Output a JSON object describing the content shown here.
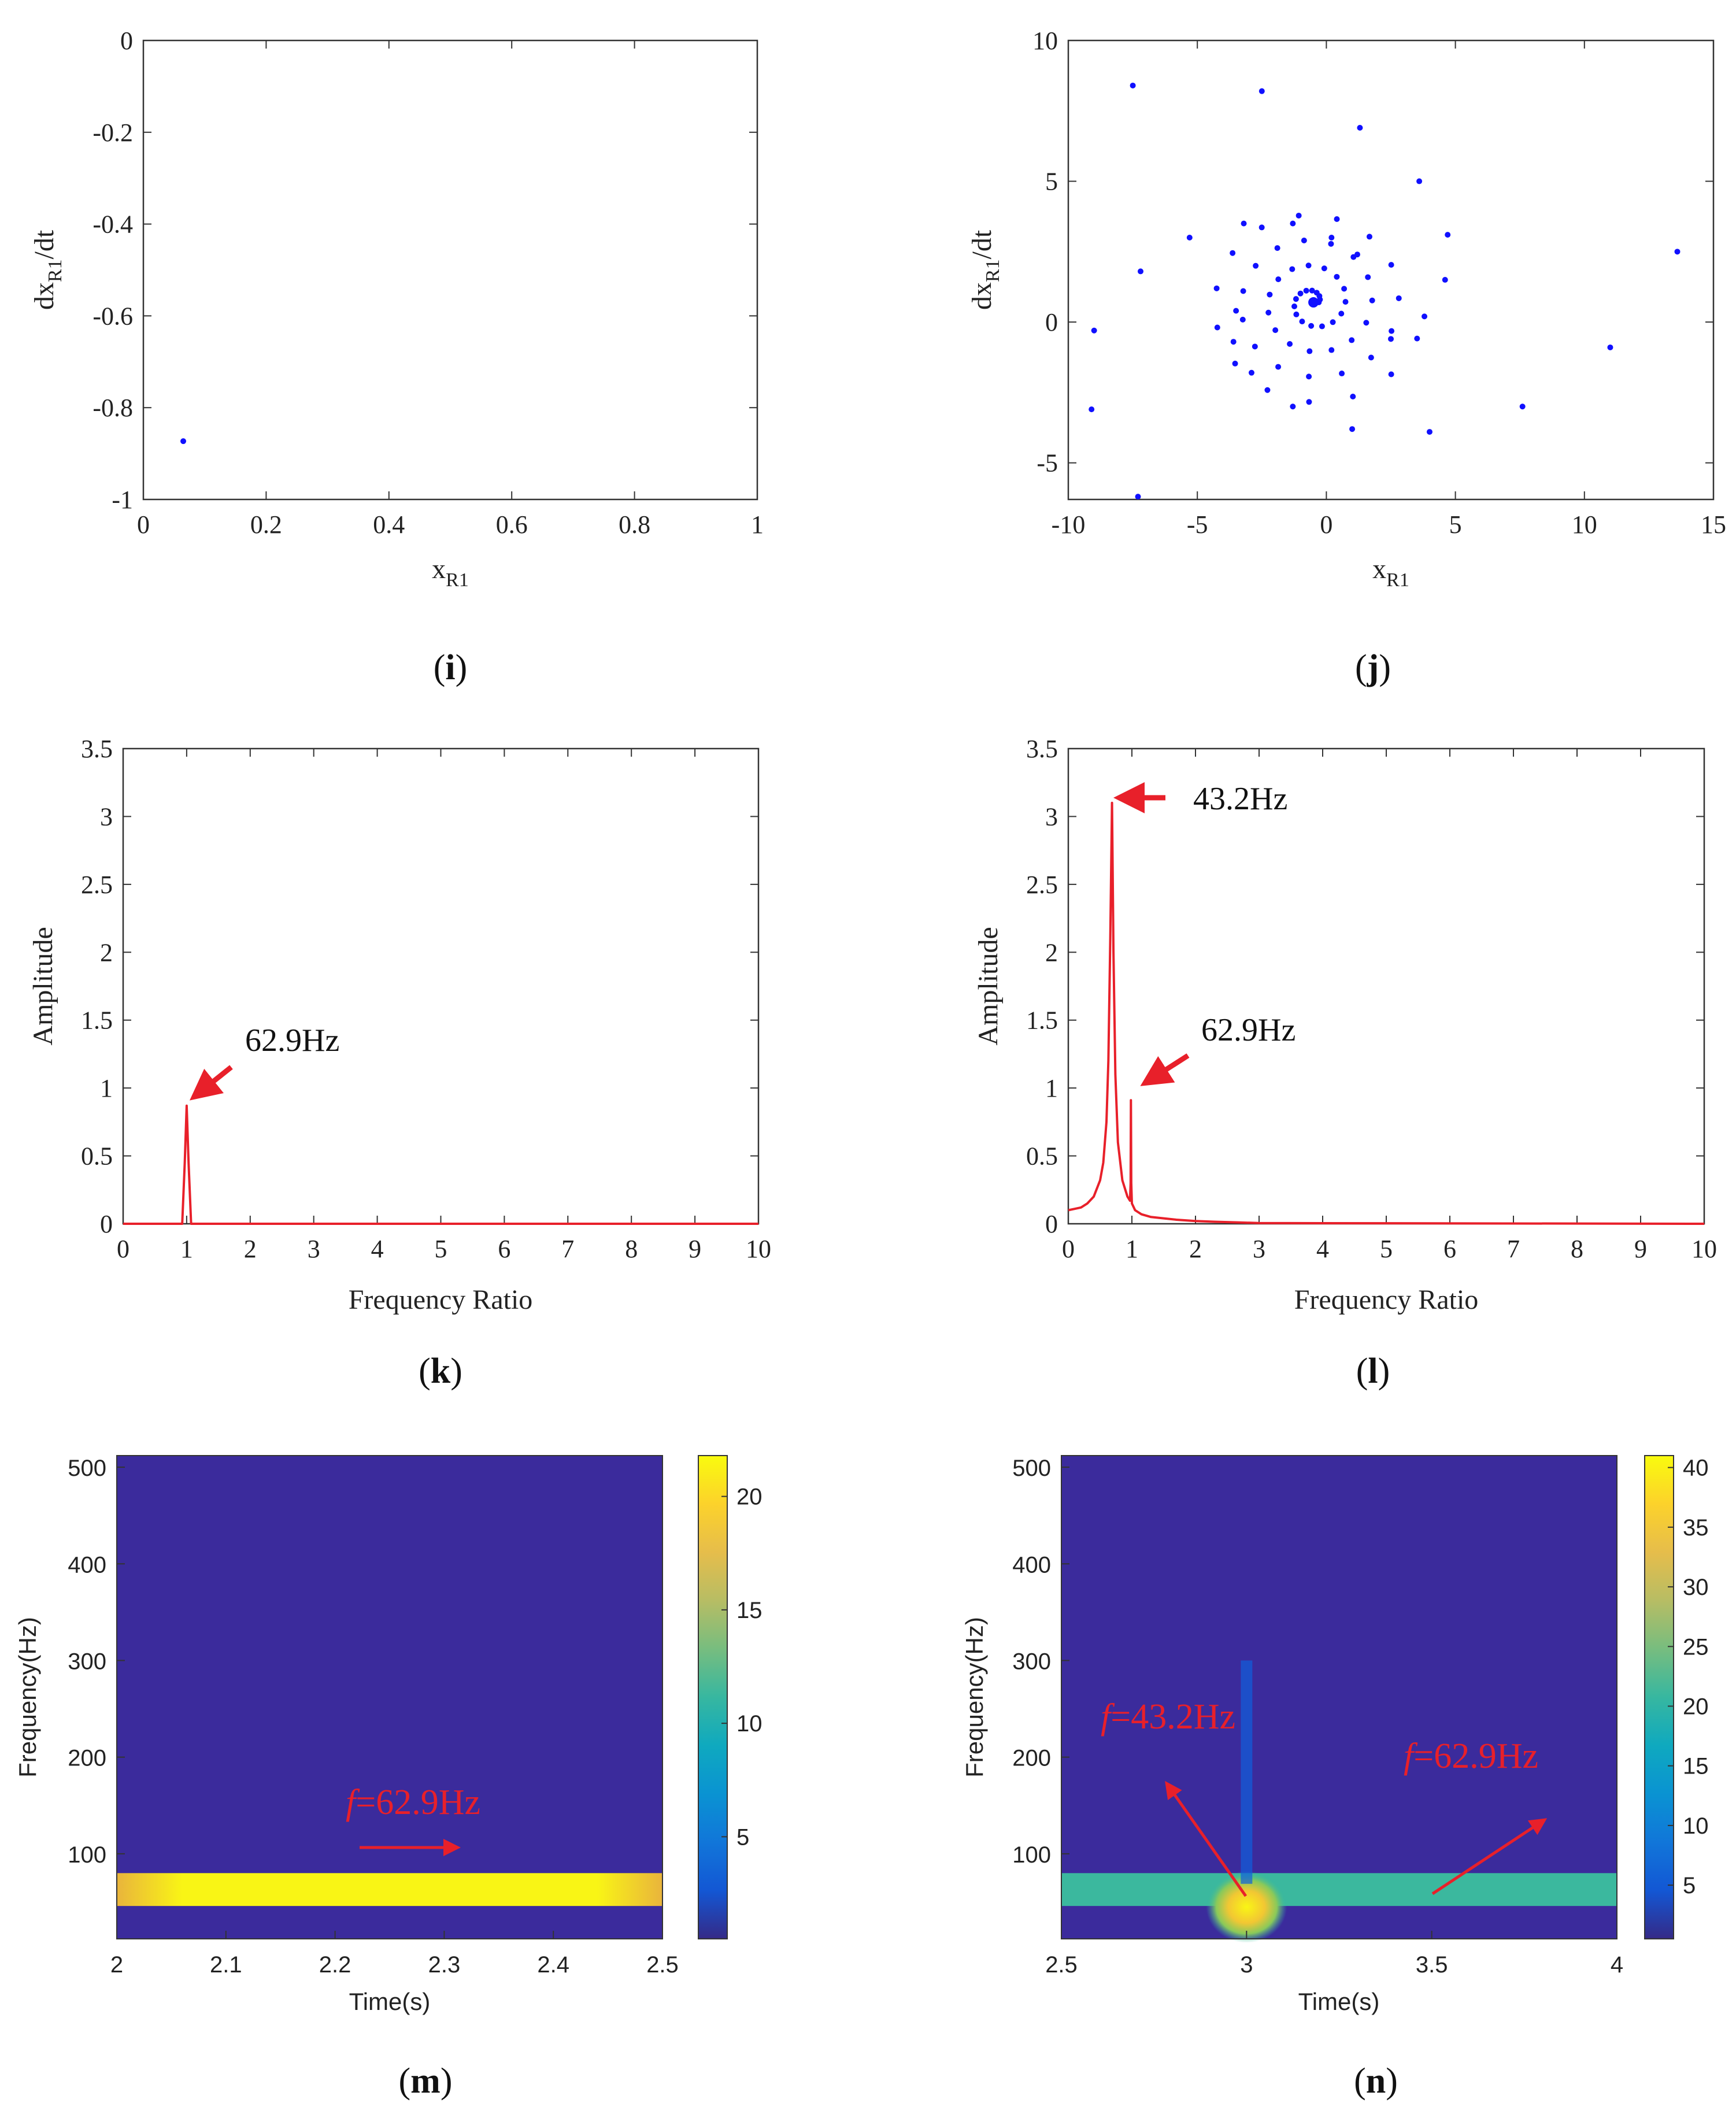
{
  "figure_labels": {
    "i": "i",
    "j": "j",
    "k": "k",
    "l": "l",
    "m": "m",
    "n": "n"
  },
  "colors": {
    "scatter": "#1010ff",
    "spectrum": "#e8202a",
    "axis": "#333333",
    "parula_low": "#3b2b9c",
    "parula_high": "#f9f515"
  },
  "chart_data": [
    {
      "id": "i",
      "type": "scatter",
      "title": "",
      "xlabel": "x",
      "xlabel_sub": "R1",
      "ylabel": "dx",
      "ylabel_sub": "R1",
      "ylabel_suffix": "/dt",
      "xlim": [
        0,
        1
      ],
      "ylim": [
        -1,
        0
      ],
      "xticks": [
        "0",
        "0.2",
        "0.4",
        "0.6",
        "0.8",
        "1"
      ],
      "xtick_values": [
        0,
        0.2,
        0.4,
        0.6,
        0.8,
        1
      ],
      "yticks": [
        "0",
        "-0.2",
        "-0.4",
        "-0.6",
        "-0.8",
        "-1"
      ],
      "ytick_values": [
        0,
        -0.2,
        -0.4,
        -0.6,
        -0.8,
        -1
      ],
      "points": [
        [
          0.065,
          -0.873
        ]
      ]
    },
    {
      "id": "j",
      "type": "scatter",
      "title": "",
      "xlabel": "x",
      "xlabel_sub": "R1",
      "ylabel": "dx",
      "ylabel_sub": "R1",
      "ylabel_suffix": "/dt",
      "xlim": [
        -10,
        15
      ],
      "ylim": [
        -6.3,
        10
      ],
      "xticks": [
        "-10",
        "-5",
        "0",
        "5",
        "10",
        "15"
      ],
      "xtick_values": [
        -10,
        -5,
        0,
        5,
        10,
        15
      ],
      "yticks": [
        "10",
        "5",
        "0",
        "-5"
      ],
      "ytick_values": [
        10,
        5,
        0,
        -5
      ],
      "spiral": {
        "center": [
          -0.5,
          0.7
        ],
        "count": 60
      },
      "points": [
        [
          -7.5,
          8.4
        ],
        [
          -2.5,
          8.2
        ],
        [
          1.3,
          6.9
        ],
        [
          3.6,
          5.0
        ],
        [
          4.7,
          3.1
        ],
        [
          13.6,
          2.5
        ],
        [
          -3.2,
          3.5
        ],
        [
          -5.3,
          3.0
        ],
        [
          -1.3,
          3.5
        ],
        [
          -7.2,
          1.8
        ],
        [
          -9.0,
          -0.3
        ],
        [
          -9.1,
          -3.1
        ],
        [
          -7.3,
          -6.2
        ],
        [
          -2.9,
          -1.8
        ],
        [
          -1.3,
          -3.0
        ],
        [
          1.0,
          -3.8
        ],
        [
          4.0,
          -3.9
        ],
        [
          7.6,
          -3.0
        ],
        [
          11.0,
          -0.9
        ],
        [
          3.8,
          0.2
        ],
        [
          4.6,
          1.5
        ],
        [
          -3.5,
          0.4
        ],
        [
          -3.6,
          -0.7
        ],
        [
          2.5,
          -0.6
        ],
        [
          1.2,
          2.4
        ],
        [
          0.2,
          3.0
        ]
      ]
    },
    {
      "id": "k",
      "type": "line",
      "title": "",
      "xlabel": "Frequency Ratio",
      "ylabel": "Amplitude",
      "xlim": [
        0,
        10
      ],
      "ylim": [
        0,
        3.5
      ],
      "xticks": [
        "0",
        "1",
        "2",
        "3",
        "4",
        "5",
        "6",
        "7",
        "8",
        "9",
        "10"
      ],
      "xtick_values": [
        0,
        1,
        2,
        3,
        4,
        5,
        6,
        7,
        8,
        9,
        10
      ],
      "yticks": [
        "0",
        "0.5",
        "1",
        "1.5",
        "2",
        "2.5",
        "3",
        "3.5"
      ],
      "ytick_values": [
        0,
        0.5,
        1,
        1.5,
        2,
        2.5,
        3,
        3.5
      ],
      "series": [
        {
          "name": "spectrum",
          "x": [
            0,
            0.93,
            0.97,
            1.0,
            1.03,
            1.07,
            10
          ],
          "y": [
            0,
            0,
            0.45,
            0.87,
            0.45,
            0,
            0
          ]
        }
      ],
      "annotations": [
        {
          "text": "62.9Hz",
          "target": [
            1.0,
            0.87
          ]
        }
      ]
    },
    {
      "id": "l",
      "type": "line",
      "title": "",
      "xlabel": "Frequency Ratio",
      "ylabel": "Amplitude",
      "xlim": [
        0,
        10
      ],
      "ylim": [
        0,
        3.5
      ],
      "xticks": [
        "0",
        "1",
        "2",
        "3",
        "4",
        "5",
        "6",
        "7",
        "8",
        "9",
        "10"
      ],
      "xtick_values": [
        0,
        1,
        2,
        3,
        4,
        5,
        6,
        7,
        8,
        9,
        10
      ],
      "yticks": [
        "0",
        "0.5",
        "1",
        "1.5",
        "2",
        "2.5",
        "3",
        "3.5"
      ],
      "ytick_values": [
        0,
        0.5,
        1,
        1.5,
        2,
        2.5,
        3,
        3.5
      ],
      "series": [
        {
          "name": "spectrum",
          "x": [
            0,
            0.1,
            0.2,
            0.3,
            0.4,
            0.5,
            0.55,
            0.6,
            0.63,
            0.66,
            0.687,
            0.71,
            0.74,
            0.78,
            0.85,
            0.93,
            0.97,
            0.98,
            0.985,
            0.99,
            1.0,
            1.05,
            1.15,
            1.3,
            1.5,
            1.7,
            2.0,
            2.3,
            2.7,
            3.0,
            10
          ],
          "y": [
            0.1,
            0.11,
            0.12,
            0.15,
            0.2,
            0.32,
            0.45,
            0.75,
            1.2,
            2.1,
            3.1,
            2.0,
            1.1,
            0.6,
            0.32,
            0.2,
            0.17,
            0.3,
            0.91,
            0.3,
            0.15,
            0.1,
            0.07,
            0.05,
            0.04,
            0.03,
            0.02,
            0.015,
            0.01,
            0.005,
            0.0
          ]
        }
      ],
      "annotations": [
        {
          "text": "43.2Hz",
          "target": [
            0.687,
            3.1
          ]
        },
        {
          "text": "62.9Hz",
          "target": [
            1.0,
            0.91
          ]
        }
      ]
    },
    {
      "id": "m",
      "type": "heatmap",
      "title": "",
      "xlabel": "Time(s)",
      "ylabel": "Frequency(Hz)",
      "xlim": [
        2,
        2.5
      ],
      "ylim": [
        12,
        512
      ],
      "xticks": [
        "2",
        "2.1",
        "2.2",
        "2.3",
        "2.4",
        "2.5"
      ],
      "xtick_values": [
        2,
        2.1,
        2.2,
        2.3,
        2.4,
        2.5
      ],
      "yticks": [
        "500",
        "400",
        "300",
        "200",
        "100"
      ],
      "ytick_values": [
        500,
        400,
        300,
        200,
        100
      ],
      "colorbar": {
        "min": 0.5,
        "max": 21.8,
        "ticks": [
          "20",
          "15",
          "10",
          "5"
        ],
        "tick_values": [
          20,
          15,
          10,
          5
        ]
      },
      "bands": [
        {
          "f_low": 46,
          "f_high": 80,
          "level": 21.5
        }
      ],
      "annotations": [
        {
          "text_italic": "f",
          "text": "=62.9Hz"
        }
      ]
    },
    {
      "id": "n",
      "type": "heatmap",
      "title": "",
      "xlabel": "Time(s)",
      "ylabel": "Frequency(Hz)",
      "xlim": [
        2.5,
        4
      ],
      "ylim": [
        12,
        512
      ],
      "xticks": [
        "2.5",
        "3",
        "3.5",
        "4"
      ],
      "xtick_values": [
        2.5,
        3,
        3.5,
        4
      ],
      "yticks": [
        "500",
        "400",
        "300",
        "200",
        "100"
      ],
      "ytick_values": [
        500,
        400,
        300,
        200,
        100
      ],
      "colorbar": {
        "min": 0.5,
        "max": 41,
        "ticks": [
          "40",
          "35",
          "30",
          "25",
          "20",
          "15",
          "10",
          "5"
        ],
        "tick_values": [
          40,
          35,
          30,
          25,
          20,
          15,
          10,
          5
        ]
      },
      "bands": [
        {
          "f_low": 46,
          "f_high": 80,
          "level": 21
        }
      ],
      "burst": {
        "t": 3.0,
        "f": 45,
        "level": 41
      },
      "annotations": [
        {
          "text_italic": "f",
          "text": "=43.2Hz"
        },
        {
          "text_italic": "f",
          "text": "=62.9Hz"
        }
      ]
    }
  ]
}
